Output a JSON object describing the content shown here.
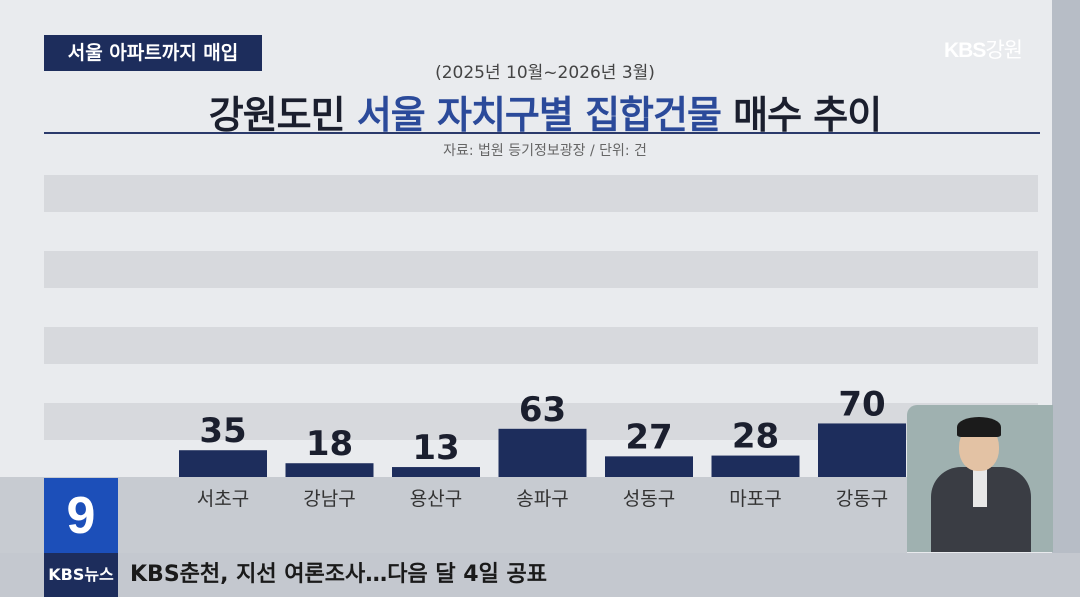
{
  "header": {
    "tag": "서울 아파트까지 매입",
    "logo_main": "KBS",
    "logo_sub": "강원",
    "period": "(2025년 10월~2026년 3월)",
    "title_prefix": "강원도민",
    "title_highlight": "서울 자치구별 집합건물",
    "title_suffix": "매수 추이",
    "source": "자료: 법원 등기정보광장 / 단위: 건"
  },
  "chart_data": {
    "type": "bar",
    "categories": [
      "서초구",
      "강남구",
      "용산구",
      "송파구",
      "성동구",
      "마포구",
      "강동구"
    ],
    "values": [
      35,
      18,
      13,
      63,
      27,
      28,
      70
    ],
    "title": "강원도민 서울 자치구별 집합건물 매수 추이",
    "subtitle": "(2025년 10월~2026년 3월)",
    "unit": "건",
    "bar_color": "#1d2d5c",
    "grid": true,
    "legend": "none"
  },
  "lower": {
    "channel_number": "9",
    "ticker_logo": "KBS뉴스",
    "ticker_text": "KBS춘천, 지선 여론조사…다음 달 4일 공표"
  },
  "colors": {
    "accent": "#2b4a9a",
    "bar": "#1d2d5c",
    "channel": "#1c4fb9"
  }
}
